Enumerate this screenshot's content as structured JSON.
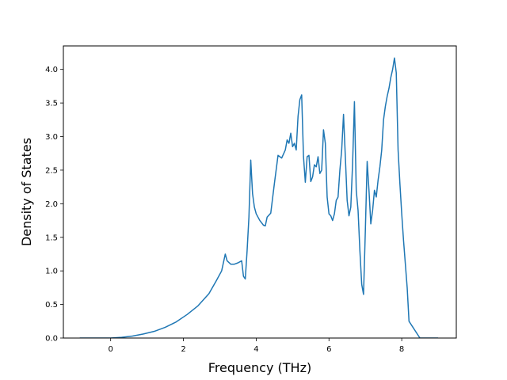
{
  "chart_data": {
    "type": "line",
    "title": "",
    "xlabel": "Frequency (THz)",
    "ylabel": "Density of States",
    "xlim": [
      -1.3,
      9.5
    ],
    "ylim": [
      0.0,
      4.35
    ],
    "xticks": [
      0,
      2,
      4,
      6,
      8
    ],
    "yticks": [
      0.0,
      0.5,
      1.0,
      1.5,
      2.0,
      2.5,
      3.0,
      3.5,
      4.0
    ],
    "xtick_labels": [
      "0",
      "2",
      "4",
      "6",
      "8"
    ],
    "ytick_labels": [
      "0.0",
      "0.5",
      "1.0",
      "1.5",
      "2.0",
      "2.5",
      "3.0",
      "3.5",
      "4.0"
    ],
    "grid": false,
    "legend": "none",
    "series": [
      {
        "color": "#1f77b4",
        "x": [
          -0.85,
          0.0,
          0.3,
          0.6,
          0.9,
          1.2,
          1.5,
          1.8,
          2.1,
          2.4,
          2.7,
          2.9,
          3.05,
          3.15,
          3.2,
          3.3,
          3.4,
          3.5,
          3.6,
          3.65,
          3.7,
          3.75,
          3.8,
          3.85,
          3.9,
          3.95,
          4.0,
          4.1,
          4.2,
          4.25,
          4.3,
          4.4,
          4.5,
          4.6,
          4.7,
          4.8,
          4.85,
          4.9,
          4.95,
          5.0,
          5.05,
          5.1,
          5.15,
          5.2,
          5.25,
          5.3,
          5.35,
          5.4,
          5.45,
          5.5,
          5.55,
          5.6,
          5.65,
          5.7,
          5.75,
          5.8,
          5.85,
          5.9,
          5.95,
          6.0,
          6.05,
          6.1,
          6.15,
          6.2,
          6.25,
          6.3,
          6.35,
          6.4,
          6.45,
          6.5,
          6.55,
          6.6,
          6.65,
          6.7,
          6.75,
          6.8,
          6.85,
          6.9,
          6.95,
          7.0,
          7.05,
          7.1,
          7.15,
          7.2,
          7.25,
          7.3,
          7.35,
          7.4,
          7.45,
          7.5,
          7.55,
          7.6,
          7.65,
          7.7,
          7.75,
          7.8,
          7.85,
          7.9,
          7.95,
          8.0,
          8.05,
          8.1,
          8.15,
          8.2,
          8.5,
          9.0
        ],
        "y": [
          0.0,
          0.0,
          0.01,
          0.03,
          0.06,
          0.1,
          0.16,
          0.24,
          0.35,
          0.48,
          0.66,
          0.85,
          1.0,
          1.25,
          1.15,
          1.1,
          1.1,
          1.12,
          1.15,
          0.92,
          0.88,
          1.3,
          1.8,
          2.65,
          2.15,
          1.95,
          1.85,
          1.75,
          1.68,
          1.67,
          1.8,
          1.86,
          2.3,
          2.72,
          2.68,
          2.8,
          2.95,
          2.9,
          3.05,
          2.85,
          2.9,
          2.8,
          3.3,
          3.55,
          3.62,
          2.7,
          2.32,
          2.7,
          2.72,
          2.33,
          2.4,
          2.58,
          2.55,
          2.7,
          2.45,
          2.5,
          3.1,
          2.9,
          2.1,
          1.85,
          1.82,
          1.75,
          1.85,
          2.05,
          2.1,
          2.5,
          2.8,
          3.33,
          2.7,
          2.05,
          1.82,
          1.95,
          2.6,
          3.52,
          2.2,
          1.9,
          1.3,
          0.8,
          0.65,
          1.6,
          2.63,
          2.2,
          1.7,
          1.9,
          2.2,
          2.1,
          2.35,
          2.55,
          2.8,
          3.25,
          3.45,
          3.6,
          3.72,
          3.88,
          4.0,
          4.17,
          3.95,
          2.8,
          2.3,
          1.85,
          1.45,
          1.1,
          0.75,
          0.25,
          0.0,
          0.0
        ]
      }
    ]
  }
}
